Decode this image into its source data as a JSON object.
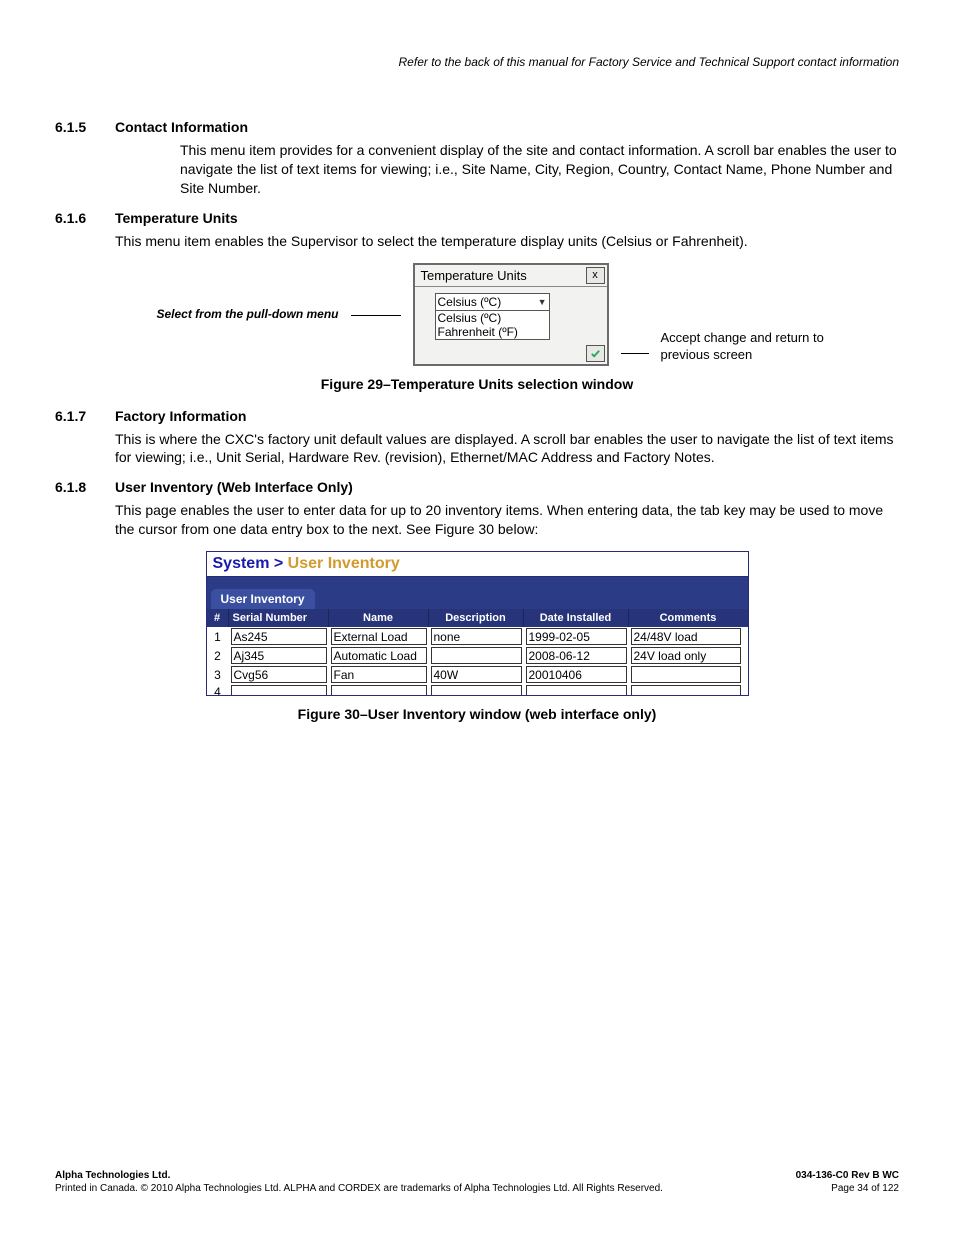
{
  "headerNote": "Refer to the back of this manual for Factory Service and Technical Support contact information",
  "sections": {
    "s615": {
      "num": "6.1.5",
      "title": "Contact Information",
      "body": "This menu item provides for a convenient display of the site and contact information. A scroll bar enables the user to navigate the list of text items for viewing; i.e., Site Name, City, Region, Country, Contact Name, Phone Number and Site Number."
    },
    "s616": {
      "num": "6.1.6",
      "title": "Temperature Units",
      "body": "This menu item enables the Supervisor to select the temperature display units (Celsius or Fahrenheit)."
    },
    "s617": {
      "num": "6.1.7",
      "title": "Factory Information",
      "body": "This is where the CXC's factory unit default values are displayed. A scroll bar enables the user to navigate the list of text items for viewing; i.e., Unit Serial, Hardware Rev. (revision), Ethernet/MAC Address and Factory Notes."
    },
    "s618": {
      "num": "6.1.8",
      "title": "User Inventory (Web Interface Only)",
      "body": "This page enables the user to enter data for up to 20 inventory items. When entering data, the tab key may be used to move the cursor from one data entry box to the next. See Figure 30 below:"
    }
  },
  "fig29": {
    "leftLabel": "Select from the pull-down menu",
    "windowTitle": "Temperature Units",
    "closeLabel": "x",
    "selected": "Celsius (ºC)",
    "options": [
      "Celsius (ºC)",
      "Fahrenheit (ºF)"
    ],
    "rightLabel": "Accept change and return to previous screen",
    "caption": "Figure 29–Temperature Units selection window"
  },
  "fig30": {
    "breadcrumb1": "System >",
    "breadcrumb2": "User Inventory",
    "tab": "User Inventory",
    "columns": {
      "idx": "#",
      "sn": "Serial Number",
      "nm": "Name",
      "ds": "Description",
      "dt": "Date Installed",
      "cm": "Comments"
    },
    "rows": [
      {
        "idx": "1",
        "sn": "As245",
        "nm": "External Load",
        "ds": "none",
        "dt": "1999-02-05",
        "cm": "24/48V load"
      },
      {
        "idx": "2",
        "sn": "Aj345",
        "nm": "Automatic Load",
        "ds": "",
        "dt": "2008-06-12",
        "cm": "24V load only"
      },
      {
        "idx": "3",
        "sn": "Cvg56",
        "nm": "Fan",
        "ds": "40W",
        "dt": "20010406",
        "cm": ""
      },
      {
        "idx": "4",
        "sn": "",
        "nm": "",
        "ds": "",
        "dt": "",
        "cm": ""
      }
    ],
    "caption": "Figure 30–User Inventory window (web interface only)"
  },
  "footer": {
    "company": "Alpha Technologies Ltd.",
    "doc": "034-136-C0  Rev B  WC",
    "legal": "Printed in Canada.  © 2010 Alpha Technologies Ltd.  ALPHA and CORDEX are trademarks of Alpha Technologies Ltd.  All Rights Reserved.",
    "page": "Page 34 of 122"
  }
}
